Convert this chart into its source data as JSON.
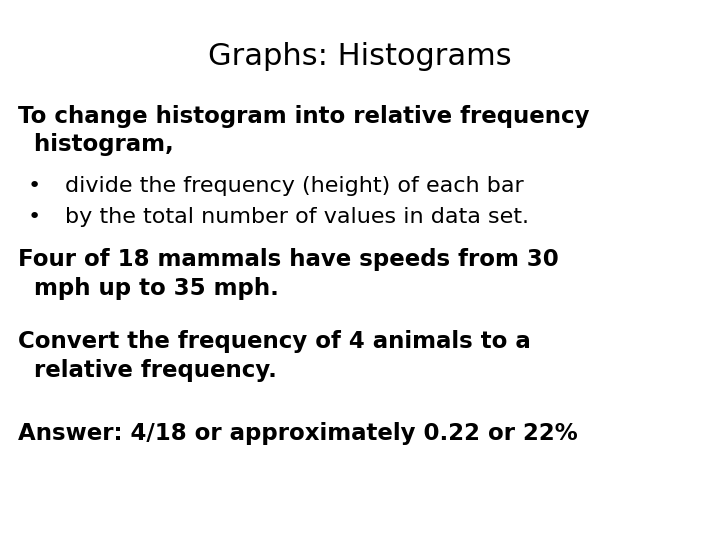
{
  "title": "Graphs: Histograms",
  "title_fontsize": 22,
  "body_fontsize": 16.5,
  "bullet_fontsize": 16,
  "background_color": "#ffffff",
  "text_color": "#000000",
  "font_family": "DejaVu Sans",
  "paragraph1_line1": "To change histogram into relative frequency",
  "paragraph1_line2": "  histogram,",
  "bullet1": "divide the frequency (height) of each bar",
  "bullet2": "by the total number of values in data set.",
  "paragraph2_line1": "Four of 18 mammals have speeds from 30",
  "paragraph2_line2": "  mph up to 35 mph.",
  "paragraph3_line1": "Convert the frequency of 4 animals to a",
  "paragraph3_line2": "  relative frequency.",
  "paragraph4": "Answer: 4/18 or approximately 0.22 or 22%",
  "bullet_dot": "•",
  "fig_width": 7.2,
  "fig_height": 5.4,
  "dpi": 100
}
